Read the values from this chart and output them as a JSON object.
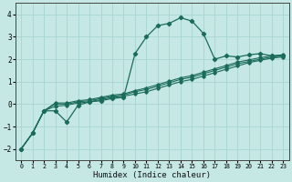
{
  "xlabel": "Humidex (Indice chaleur)",
  "bg_color": "#c5e8e5",
  "grid_color": "#a8d4d0",
  "line_color": "#1a6b5a",
  "xlim": [
    -0.5,
    23.5
  ],
  "ylim": [
    -2.5,
    4.5
  ],
  "xticks": [
    0,
    1,
    2,
    3,
    4,
    5,
    6,
    7,
    8,
    9,
    10,
    11,
    12,
    13,
    14,
    15,
    16,
    17,
    18,
    19,
    20,
    21,
    22,
    23
  ],
  "yticks": [
    -2,
    -1,
    0,
    1,
    2,
    3,
    4
  ],
  "series1_x": [
    0,
    1,
    2,
    3,
    4,
    5,
    6,
    7,
    8,
    9,
    10,
    11,
    12,
    13,
    14,
    15,
    16,
    17,
    18,
    19,
    20,
    21,
    22,
    23
  ],
  "series1_y": [
    -2.0,
    -1.3,
    -0.3,
    -0.3,
    -0.8,
    -0.05,
    0.1,
    0.15,
    0.25,
    0.3,
    2.25,
    3.0,
    3.5,
    3.6,
    3.85,
    3.7,
    3.15,
    2.0,
    2.15,
    2.1,
    2.2,
    2.25,
    2.15,
    2.15
  ],
  "series2_x": [
    0,
    1,
    2,
    3,
    4,
    5,
    6,
    7,
    8,
    9,
    10,
    11,
    12,
    13,
    14,
    15,
    16,
    17,
    18,
    19,
    20,
    21,
    22,
    23
  ],
  "series2_y": [
    -2.0,
    -1.3,
    -0.3,
    -0.1,
    -0.05,
    0.05,
    0.1,
    0.2,
    0.3,
    0.35,
    0.45,
    0.55,
    0.7,
    0.85,
    1.0,
    1.1,
    1.25,
    1.4,
    1.55,
    1.7,
    1.85,
    1.95,
    2.05,
    2.1
  ],
  "series3_x": [
    0,
    1,
    2,
    3,
    4,
    5,
    6,
    7,
    8,
    9,
    10,
    11,
    12,
    13,
    14,
    15,
    16,
    17,
    18,
    19,
    20,
    21,
    22,
    23
  ],
  "series3_y": [
    -2.0,
    -1.3,
    -0.3,
    0.0,
    0.0,
    0.1,
    0.15,
    0.25,
    0.35,
    0.4,
    0.55,
    0.65,
    0.8,
    0.95,
    1.1,
    1.2,
    1.35,
    1.5,
    1.65,
    1.8,
    1.9,
    2.0,
    2.1,
    2.15
  ],
  "series4_x": [
    0,
    1,
    2,
    3,
    4,
    5,
    6,
    7,
    8,
    9,
    10,
    11,
    12,
    13,
    14,
    15,
    16,
    17,
    18,
    19,
    20,
    21,
    22,
    23
  ],
  "series4_y": [
    -2.0,
    -1.3,
    -0.3,
    0.05,
    0.05,
    0.15,
    0.2,
    0.3,
    0.4,
    0.45,
    0.6,
    0.72,
    0.87,
    1.02,
    1.17,
    1.27,
    1.42,
    1.57,
    1.72,
    1.87,
    1.97,
    2.07,
    2.15,
    2.2
  ]
}
